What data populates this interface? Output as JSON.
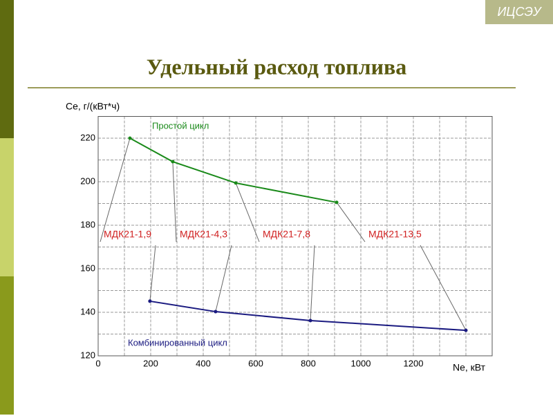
{
  "header": {
    "badge": "ИЦСЭУ",
    "title": "Удельный расход топлива"
  },
  "chart_data": {
    "type": "line",
    "y_label": "Ce, г/(кВт*ч)",
    "x_label": "Ne, кВт",
    "xlim": [
      0,
      1500
    ],
    "ylim": [
      120,
      230
    ],
    "xticks": [
      0,
      200,
      400,
      600,
      800,
      1000,
      1200
    ],
    "yticks": [
      120,
      140,
      160,
      180,
      200,
      220
    ],
    "grid": true,
    "series": [
      {
        "name": "Простой цикл",
        "color": "#1a8a1a",
        "x": [
          121,
          284,
          524,
          908
        ],
        "values": [
          220,
          209.2,
          199.4,
          190.5
        ]
      },
      {
        "name": "Комбинированный цикл",
        "color": "#1a1a80",
        "x": [
          197,
          447,
          808,
          1400
        ],
        "values": [
          145.1,
          140.3,
          136.2,
          131.7
        ]
      }
    ],
    "annotations": [
      "МДК21-1,9",
      "МДК21-4,3",
      "МДК21-7,8",
      "МДК21-13,5"
    ]
  }
}
